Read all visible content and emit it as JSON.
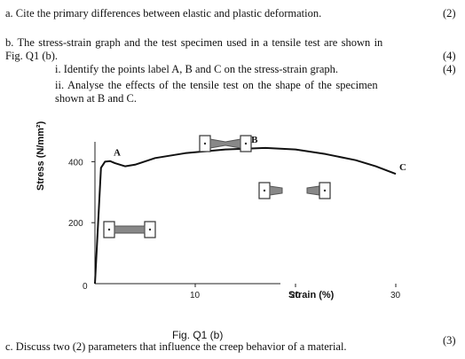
{
  "question": {
    "a_text": "a. Cite the primary differences between elastic and plastic deformation.",
    "a_marks": "(2)",
    "b_line1": "b. The stress-strain graph and the test specimen used in a tensile test are shown in",
    "b_line2": "Fig. Q1 (b).",
    "b_i": "i. Identify the points label A, B and C on the stress-strain graph.",
    "b_i_marks1": "(4)",
    "b_i_marks2": "(4)",
    "b_ii_line1": "ii. Analyse the effects of the tensile test on the shape of the specimen",
    "b_ii_line2": "shown at B and C.",
    "c_text": "c. Discuss two (2) parameters that influence the creep behavior of a material.",
    "c_marks": "(3)"
  },
  "figure": {
    "caption": "Fig. Q1 (b)",
    "point_labels": [
      "A",
      "B",
      "C"
    ]
  },
  "chart_data": {
    "type": "line",
    "ylabel": "Stress (N/mm²)",
    "xlabel": "Strain (%)",
    "x_ticks": [
      "10",
      "20",
      "30"
    ],
    "y_ticks": [
      "0",
      "200",
      "400"
    ],
    "xlim": [
      0,
      35
    ],
    "ylim": [
      0,
      480
    ],
    "series": [
      {
        "x": [
          0,
          0.6,
          1.0,
          1.5,
          2.0,
          3.0,
          4,
          6,
          9,
          13,
          17,
          20,
          23,
          26,
          28,
          30
        ],
        "y": [
          0,
          380,
          400,
          402,
          395,
          385,
          390,
          412,
          428,
          440,
          445,
          440,
          425,
          405,
          385,
          360
        ]
      }
    ],
    "points": [
      {
        "label": "A",
        "x": 1.5,
        "y": 402
      },
      {
        "label": "B",
        "x": 17,
        "y": 445
      },
      {
        "label": "C",
        "x": 30,
        "y": 360
      }
    ]
  }
}
